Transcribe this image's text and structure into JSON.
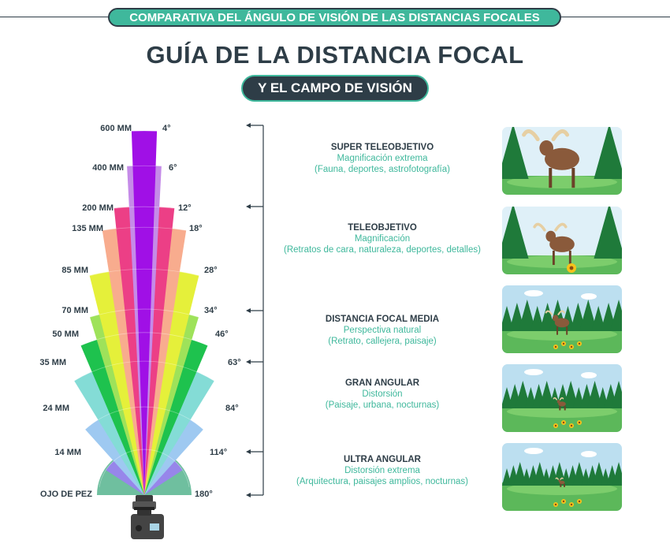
{
  "top_banner": "COMPARATIVA DEL ÁNGULO DE VISIÓN DE LAS DISTANCIAS FOCALES",
  "title": "GUÍA DE LA DISTANCIA FOCAL",
  "subtitle": "Y EL CAMPO DE VISIÓN",
  "lenses": [
    {
      "focal": "600 MM",
      "angle": "4°",
      "deg": 4,
      "color": "#a010e6"
    },
    {
      "focal": "400 MM",
      "angle": "6°",
      "deg": 6,
      "color": "#c58be8"
    },
    {
      "focal": "200 MM",
      "angle": "12°",
      "deg": 12,
      "color": "#ec3f86"
    },
    {
      "focal": "135 MM",
      "angle": "18°",
      "deg": 18,
      "color": "#f8ac8e"
    },
    {
      "focal": "85 MM",
      "angle": "28°",
      "deg": 28,
      "color": "#e5f03a"
    },
    {
      "focal": "70 MM",
      "angle": "34°",
      "deg": 34,
      "color": "#9ee25a"
    },
    {
      "focal": "50 MM",
      "angle": "46°",
      "deg": 46,
      "color": "#1ec24e"
    },
    {
      "focal": "35 MM",
      "angle": "63°",
      "deg": 63,
      "color": "#84dcd6"
    },
    {
      "focal": "24 MM",
      "angle": "84°",
      "deg": 84,
      "color": "#9ec9f1"
    },
    {
      "focal": "14 MM",
      "angle": "114°",
      "deg": 114,
      "color": "#9786ea"
    },
    {
      "focal": "OJO DE PEZ",
      "angle": "180°",
      "deg": 180,
      "color": "#6fbf9f"
    }
  ],
  "categories": [
    {
      "title": "SUPER TELEOBJETIVO",
      "line1": "Magnificación extrema",
      "line2": "(Fauna, deportes, astrofotografía)"
    },
    {
      "title": "TELEOBJETIVO",
      "line1": "Magnificación",
      "line2": "(Retratos de cara, naturaleza, deportes, detalles)"
    },
    {
      "title": "DISTANCIA FOCAL MEDIA",
      "line1": "Perspectiva natural",
      "line2": "(Retrato, callejera, paisaje)"
    },
    {
      "title": "GRAN ANGULAR",
      "line1": "Distorsión",
      "line2": "(Paisaje, urbana, nocturnas)"
    },
    {
      "title": "ULTRA ANGULAR",
      "line1": "Distorsión extrema",
      "line2": "(Arquitectura, paisajes amplios, nocturnas)"
    }
  ],
  "colors": {
    "dark": "#2e3d47",
    "teal": "#3fb89c"
  }
}
